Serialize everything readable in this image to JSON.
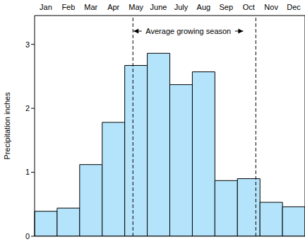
{
  "chart_data": {
    "type": "bar",
    "categories": [
      "Jan",
      "Feb",
      "Mar",
      "Apr",
      "May",
      "June",
      "July",
      "Aug",
      "Sep",
      "Oct",
      "Nov",
      "Dec"
    ],
    "values": [
      0.39,
      0.44,
      1.12,
      1.78,
      2.67,
      2.86,
      2.37,
      2.57,
      0.87,
      0.9,
      0.53,
      0.46
    ],
    "color": "#b4e4fb",
    "ylim": [
      0,
      3.45
    ],
    "yticks": [
      0,
      1,
      2,
      3
    ],
    "y_label": "Precipitation inches",
    "annotation": {
      "text": "Average growing season",
      "start": "May",
      "end": "Oct"
    }
  }
}
